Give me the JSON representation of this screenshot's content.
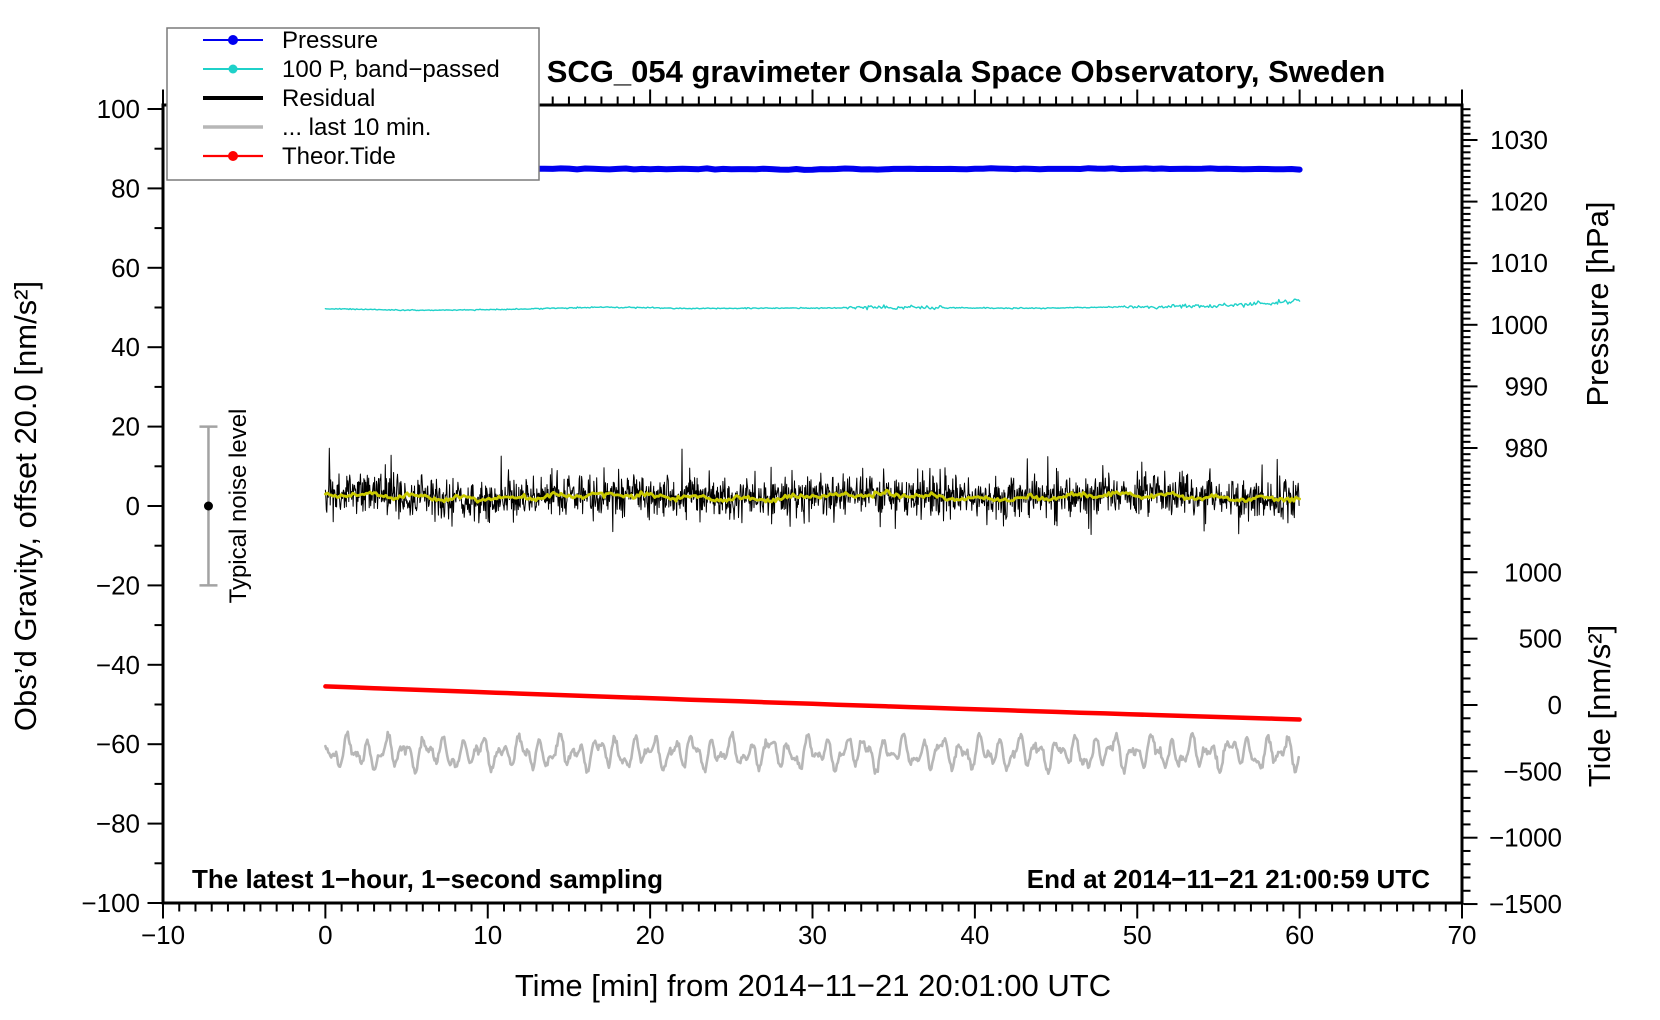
{
  "page": {
    "background": "#ffffff"
  },
  "chart_data": {
    "type": "line",
    "title": "SCG_054 gravimeter Onsala Space Observatory, Sweden",
    "xlabel": "Time [min] from 2014−11−21 20:01:00 UTC",
    "x_axis": {
      "range": [
        -10,
        70
      ],
      "major_step": 10,
      "minor_step": 1,
      "tick_values": [
        -10,
        0,
        10,
        20,
        30,
        40,
        50,
        60,
        70
      ],
      "tick_labels": [
        "−10",
        "0",
        "10",
        "20",
        "30",
        "40",
        "50",
        "60",
        "70"
      ]
    },
    "left_axis": {
      "label": "Obs’d Gravity, offset 20.0 [nm/s²]",
      "range": [
        -100,
        100
      ],
      "major_step": 20,
      "minor_step": 10,
      "tick_values": [
        100,
        80,
        60,
        40,
        20,
        0,
        -20,
        -40,
        -60,
        -80,
        -100
      ],
      "tick_labels": [
        "100",
        "80",
        "60",
        "40",
        "20",
        "0",
        "−20",
        "−40",
        "−60",
        "−80",
        "−100"
      ]
    },
    "right_pressure_axis": {
      "label": "Pressure [hPa]",
      "top_value": 1035,
      "bottom_value": 971,
      "major_step": 10,
      "minor_step": 1,
      "tick_values": [
        1030,
        1020,
        1010,
        1000,
        990,
        980
      ],
      "tick_labels": [
        "1030",
        "1020",
        "1010",
        "1000",
        "990",
        "980"
      ]
    },
    "right_tide_axis": {
      "label": "Tide [nm/s²]",
      "top_value": 1400,
      "bottom_value": -1500,
      "major_step": 500,
      "minor_step": 100,
      "tick_values": [
        1000,
        500,
        0,
        -500,
        -1000,
        -1500
      ],
      "tick_labels": [
        "1000",
        "500",
        "0",
        "−500",
        "−1000",
        "−1500"
      ]
    },
    "legend": {
      "items": [
        {
          "label": "Pressure",
          "color": "#0000f0",
          "line_width": 2,
          "dot": true,
          "dot_r": 5
        },
        {
          "label": "100 P, band−passed",
          "color": "#1fd1c9",
          "line_width": 2,
          "dot": true,
          "dot_r": 4.5
        },
        {
          "label": "Residual",
          "color": "#000000",
          "line_width": 4,
          "dot": false,
          "dot_r": 0
        },
        {
          "label": "... last 10 min.",
          "color": "#b7b7b7",
          "line_width": 3.5,
          "dot": false,
          "dot_r": 0
        },
        {
          "label": "Theor.Tide",
          "color": "#ff0000",
          "line_width": 2.2,
          "dot": true,
          "dot_r": 5
        }
      ]
    },
    "annotations": {
      "sampling_note": "The latest 1−hour, 1−second sampling",
      "end_note": "End at 2014−11−21 21:00:59 UTC",
      "noise_label": "Typical noise level",
      "noise_bar": {
        "t": -7.2,
        "center_value": 0,
        "half_range": 20,
        "bar_color": "#a3a3a3",
        "dot_color": "#000000"
      }
    },
    "series": [
      {
        "id": "pressure",
        "name": "Pressure",
        "axis": "pressure",
        "kind": "constant",
        "color": "#0000f0",
        "width": 6,
        "t_start": 0,
        "t_end": 60,
        "value_hpa": 1025.3,
        "jitter_hpa": 0.05
      },
      {
        "id": "bandpassed",
        "name": "100 P, band−passed",
        "axis": "gravity",
        "kind": "controls",
        "color": "#1fd1c9",
        "width": 1.4,
        "noise_sigma": 0.07,
        "points": [
          [
            0,
            49.7
          ],
          [
            2,
            49.55
          ],
          [
            4,
            49.35
          ],
          [
            6,
            49.3
          ],
          [
            8,
            49.35
          ],
          [
            10,
            49.45
          ],
          [
            12,
            49.6
          ],
          [
            14,
            49.8
          ],
          [
            16,
            50.0
          ],
          [
            17.5,
            50.1
          ],
          [
            19,
            50.0
          ],
          [
            21,
            49.85
          ],
          [
            23,
            49.75
          ],
          [
            25,
            49.8
          ],
          [
            27,
            49.85
          ],
          [
            29,
            49.85
          ],
          [
            31,
            49.9
          ],
          [
            33,
            49.95
          ],
          [
            34.3,
            50.2
          ],
          [
            35.2,
            49.85
          ],
          [
            36.2,
            50.1
          ],
          [
            37.2,
            49.9
          ],
          [
            39,
            49.9
          ],
          [
            41,
            49.85
          ],
          [
            43,
            49.8
          ],
          [
            45,
            49.9
          ],
          [
            47,
            50.0
          ],
          [
            49,
            50.15
          ],
          [
            51,
            50.1
          ],
          [
            52.5,
            50.35
          ],
          [
            54,
            50.3
          ],
          [
            55.5,
            50.7
          ],
          [
            56.5,
            50.6
          ],
          [
            57.5,
            51.1
          ],
          [
            58.3,
            50.95
          ],
          [
            59,
            51.5
          ],
          [
            59.6,
            51.6
          ],
          [
            60,
            51.85
          ]
        ]
      },
      {
        "id": "residual",
        "name": "Residual",
        "axis": "gravity",
        "kind": "noise",
        "color": "#000000",
        "width": 1,
        "t_start": 0,
        "t_end": 60,
        "mean": 2.3,
        "sigma": 2.6,
        "spike_prob": 0.013,
        "spike_size": 7
      },
      {
        "id": "residual_smooth",
        "name": "Residual (smoothed)",
        "axis": "gravity",
        "kind": "smoothline",
        "color": "#c9c900",
        "width": 2.8,
        "t_start": 0,
        "t_end": 60,
        "mean": 2.3,
        "wobble": 0.45,
        "noise_sigma": 0.3
      },
      {
        "id": "last10",
        "name": "... last 10 min.",
        "axis": "gravity",
        "kind": "oscillation",
        "color": "#b7b7b7",
        "width": 2.6,
        "t_start": 0,
        "t_end": 60,
        "mean": -62.2,
        "amp1": 2.5,
        "per1": 1.18,
        "amp2": 1.7,
        "per2": 0.66,
        "amp3": 1.1,
        "per3": 2.6,
        "noise_sigma": 0.45
      },
      {
        "id": "tide",
        "name": "Theor.Tide",
        "axis": "tide",
        "kind": "quadratic",
        "color": "#ff0000",
        "width": 4.5,
        "t_start": 0,
        "t_end": 60,
        "v0": 140,
        "slope": -4.6,
        "quad": 0.0075,
        "end_value_approx": -116
      }
    ]
  }
}
